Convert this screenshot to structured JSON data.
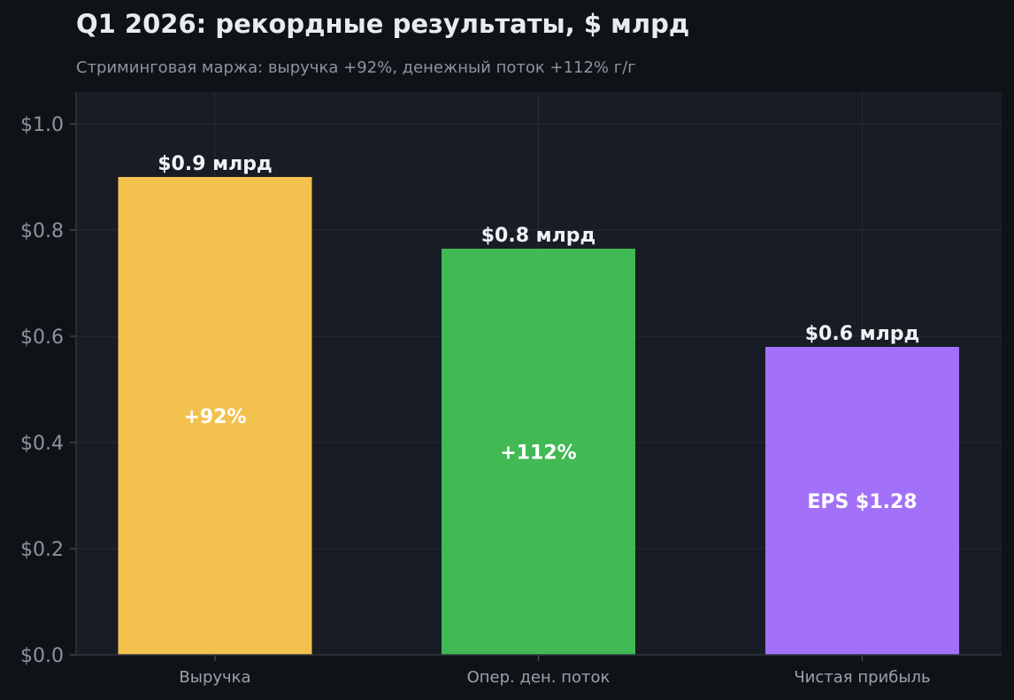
{
  "chart_data": {
    "type": "bar",
    "title": "Q1 2026: рекордные результаты, $ млрд",
    "subtitle": "Стриминговая маржа: выручка +92%, денежный поток +112% г/г",
    "categories": [
      "Выручка",
      "Опер. ден. поток",
      "Чистая прибыль"
    ],
    "values": [
      0.9,
      0.765,
      0.58
    ],
    "value_labels": [
      "$0.9 млрд",
      "$0.8 млрд",
      "$0.6 млрд"
    ],
    "inner_labels": [
      "+92%",
      "+112%",
      "EPS $1.28"
    ],
    "colors": [
      "#f2c14e",
      "#41b954",
      "#a371f7"
    ],
    "ylim": [
      0,
      1.06
    ],
    "yticks": [
      0.0,
      0.2,
      0.4,
      0.6,
      0.8,
      1.0
    ],
    "ytick_labels": [
      "$0.0",
      "$0.2",
      "$0.4",
      "$0.6",
      "$0.8",
      "$1.0"
    ],
    "grid": true,
    "legend": "none"
  }
}
